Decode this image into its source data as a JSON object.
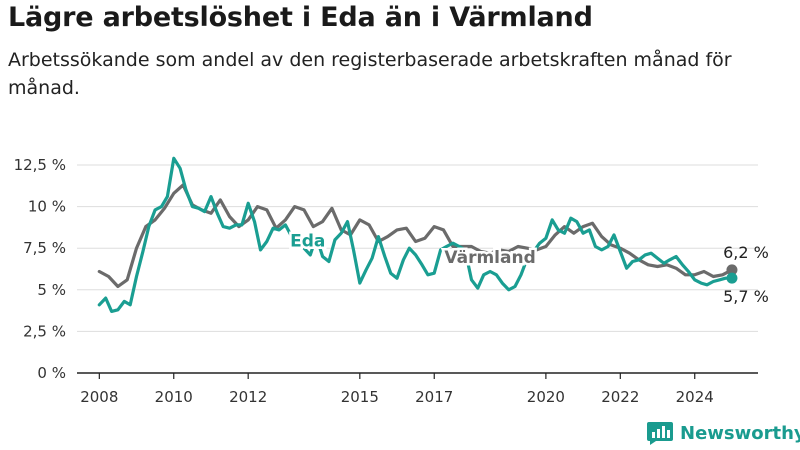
{
  "title": "Lägre arbetslöshet i Eda än i Värmland",
  "subtitle": "Arbetssökande som andel av den registerbaserade arbetskraften månad för månad.",
  "brand": {
    "name": "Newsworthy",
    "icon": "newsworthy-logo-icon"
  },
  "colors": {
    "eda": "#1a9e92",
    "varmland": "#6b6b6b",
    "grid": "#dddddd",
    "axis": "#222222"
  },
  "chart_data": {
    "type": "line",
    "xlabel": "",
    "ylabel": "",
    "ylim": [
      0,
      12.5
    ],
    "xlim": [
      2007.4,
      2025.7
    ],
    "y_ticks": [
      0,
      2.5,
      5,
      7.5,
      10,
      12.5
    ],
    "y_tick_labels": [
      "0 %",
      "2,5 %",
      "5 %",
      "7,5 %",
      "10 %",
      "12,5 %"
    ],
    "x_ticks": [
      2008,
      2010,
      2012,
      2015,
      2017,
      2020,
      2022,
      2024
    ],
    "x_tick_labels": [
      "2008",
      "2010",
      "2012",
      "2015",
      "2017",
      "2020",
      "2022",
      "2024"
    ],
    "grid": "horizontal",
    "series": [
      {
        "name": "Värmland",
        "color": "#6b6b6b",
        "end_label": "6,2 %",
        "x": [
          2008.0,
          2008.25,
          2008.5,
          2008.75,
          2009.0,
          2009.25,
          2009.5,
          2009.75,
          2010.0,
          2010.25,
          2010.5,
          2010.75,
          2011.0,
          2011.25,
          2011.5,
          2011.75,
          2012.0,
          2012.25,
          2012.5,
          2012.75,
          2013.0,
          2013.25,
          2013.5,
          2013.75,
          2014.0,
          2014.25,
          2014.5,
          2014.75,
          2015.0,
          2015.25,
          2015.5,
          2015.75,
          2016.0,
          2016.25,
          2016.5,
          2016.75,
          2017.0,
          2017.25,
          2017.5,
          2017.75,
          2018.0,
          2018.25,
          2018.5,
          2018.75,
          2019.0,
          2019.25,
          2019.5,
          2019.75,
          2020.0,
          2020.25,
          2020.5,
          2020.75,
          2021.0,
          2021.25,
          2021.5,
          2021.75,
          2022.0,
          2022.25,
          2022.5,
          2022.75,
          2023.0,
          2023.25,
          2023.5,
          2023.75,
          2024.0,
          2024.25,
          2024.5,
          2024.75,
          2025.0
        ],
        "y": [
          6.1,
          5.8,
          5.2,
          5.6,
          7.5,
          8.8,
          9.2,
          9.9,
          10.8,
          11.3,
          10.1,
          9.8,
          9.6,
          10.4,
          9.4,
          8.8,
          9.2,
          10.0,
          9.8,
          8.7,
          9.2,
          10.0,
          9.8,
          8.8,
          9.1,
          9.9,
          8.6,
          8.3,
          9.2,
          8.9,
          7.9,
          8.2,
          8.6,
          8.7,
          7.9,
          8.1,
          8.8,
          8.6,
          7.6,
          7.6,
          7.6,
          7.3,
          7.2,
          7.4,
          7.3,
          7.6,
          7.5,
          7.4,
          7.6,
          8.3,
          8.8,
          8.4,
          8.8,
          9.0,
          8.2,
          7.7,
          7.5,
          7.2,
          6.8,
          6.5,
          6.4,
          6.5,
          6.3,
          5.9,
          5.9,
          6.1,
          5.8,
          5.9,
          6.2
        ]
      },
      {
        "name": "Eda",
        "color": "#1a9e92",
        "end_label": "5,7 %",
        "x": [
          2008.0,
          2008.17,
          2008.33,
          2008.5,
          2008.67,
          2008.83,
          2009.0,
          2009.17,
          2009.33,
          2009.5,
          2009.67,
          2009.83,
          2010.0,
          2010.17,
          2010.33,
          2010.5,
          2010.67,
          2010.83,
          2011.0,
          2011.17,
          2011.33,
          2011.5,
          2011.67,
          2011.83,
          2012.0,
          2012.17,
          2012.33,
          2012.5,
          2012.67,
          2012.83,
          2013.0,
          2013.17,
          2013.33,
          2013.5,
          2013.67,
          2013.83,
          2014.0,
          2014.17,
          2014.33,
          2014.5,
          2014.67,
          2014.83,
          2015.0,
          2015.17,
          2015.33,
          2015.5,
          2015.67,
          2015.83,
          2016.0,
          2016.17,
          2016.33,
          2016.5,
          2016.67,
          2016.83,
          2017.0,
          2017.17,
          2017.33,
          2017.5,
          2017.67,
          2017.83,
          2018.0,
          2018.17,
          2018.33,
          2018.5,
          2018.67,
          2018.83,
          2019.0,
          2019.17,
          2019.33,
          2019.5,
          2019.67,
          2019.83,
          2020.0,
          2020.17,
          2020.33,
          2020.5,
          2020.67,
          2020.83,
          2021.0,
          2021.17,
          2021.33,
          2021.5,
          2021.67,
          2021.83,
          2022.0,
          2022.17,
          2022.33,
          2022.5,
          2022.67,
          2022.83,
          2023.0,
          2023.17,
          2023.33,
          2023.5,
          2023.67,
          2023.83,
          2024.0,
          2024.17,
          2024.33,
          2024.5,
          2024.67,
          2024.83,
          2025.0
        ],
        "y": [
          4.1,
          4.5,
          3.7,
          3.8,
          4.3,
          4.1,
          5.8,
          7.3,
          8.8,
          9.8,
          10.0,
          10.6,
          12.9,
          12.3,
          11.0,
          10.0,
          9.9,
          9.7,
          10.6,
          9.6,
          8.8,
          8.7,
          8.9,
          8.9,
          10.2,
          9.1,
          7.4,
          7.9,
          8.7,
          8.6,
          8.9,
          8.2,
          8.2,
          7.5,
          7.1,
          8.2,
          7.0,
          6.7,
          8.0,
          8.4,
          9.1,
          7.4,
          5.4,
          6.2,
          6.9,
          8.2,
          7.0,
          6.0,
          5.7,
          6.8,
          7.5,
          7.1,
          6.5,
          5.9,
          6.0,
          7.4,
          7.6,
          7.8,
          7.6,
          7.4,
          5.6,
          5.1,
          5.9,
          6.1,
          5.9,
          5.4,
          5.0,
          5.2,
          5.9,
          6.9,
          7.3,
          7.8,
          8.1,
          9.2,
          8.6,
          8.4,
          9.3,
          9.1,
          8.4,
          8.6,
          7.6,
          7.4,
          7.6,
          8.3,
          7.3,
          6.3,
          6.7,
          6.8,
          7.1,
          7.2,
          6.9,
          6.6,
          6.8,
          7.0,
          6.5,
          6.1,
          5.6,
          5.4,
          5.3,
          5.5,
          5.6,
          5.7,
          5.7
        ]
      }
    ]
  }
}
